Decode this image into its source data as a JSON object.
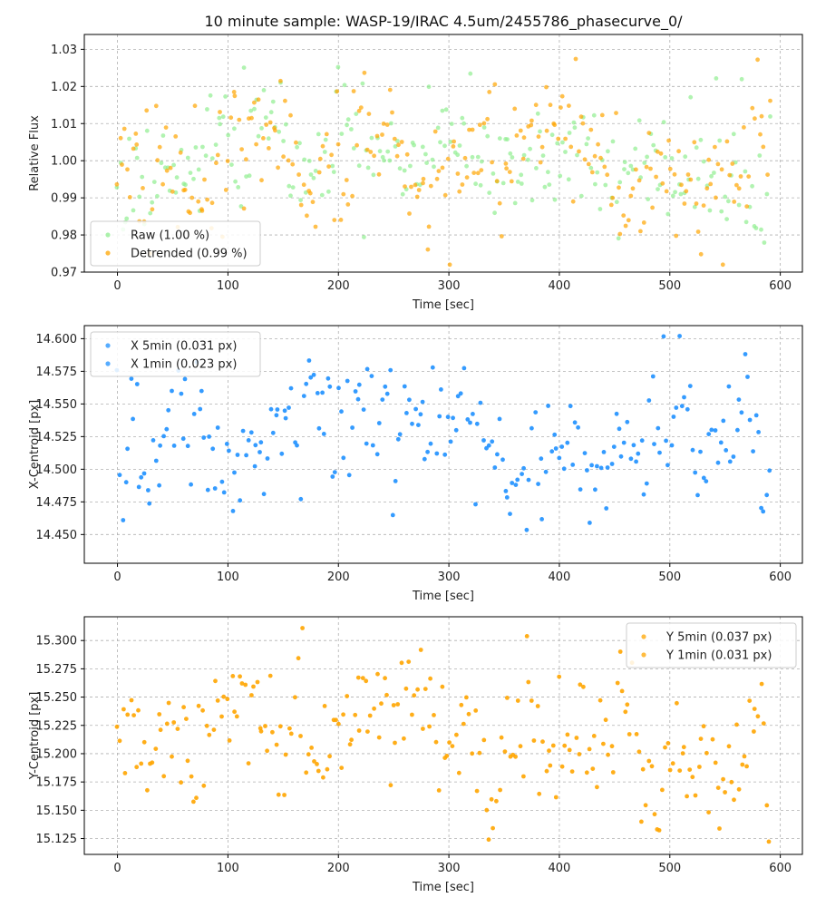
{
  "title": "10 minute sample: WASP-19/IRAC 4.5um/2455786_phasecurve_0/",
  "colors": {
    "raw": "#90EE90",
    "detrended": "#FFA500",
    "x": "#1E90FF",
    "y": "#FFA500"
  },
  "chart_data": [
    {
      "type": "scatter",
      "xlabel": "Time [sec]",
      "ylabel": "Relative Flux",
      "xlim": [
        -30,
        620
      ],
      "ylim": [
        0.97,
        1.034
      ],
      "xticks": [
        0,
        100,
        200,
        300,
        400,
        500,
        600
      ],
      "yticks": [
        0.97,
        0.98,
        0.99,
        1.0,
        1.01,
        1.02,
        1.03
      ],
      "ytick_labels": [
        "0.97",
        "0.98",
        "0.99",
        "1.00",
        "1.01",
        "1.02",
        "1.03"
      ],
      "grid": true,
      "legend_position": "bottom-left",
      "series": [
        {
          "name": "Raw (1.00 %)",
          "color": "#90EE90",
          "seed": 11,
          "mean": 1.0,
          "spread": 0.0105,
          "min": 0.974,
          "max": 1.027
        },
        {
          "name": "Detrended (0.99 %)",
          "color": "#FFA500",
          "seed": 23,
          "mean": 1.0,
          "spread": 0.0102,
          "min": 0.972,
          "max": 1.03
        }
      ],
      "x_range": [
        0,
        590
      ],
      "n_points": 260
    },
    {
      "type": "scatter",
      "xlabel": "Time [sec]",
      "ylabel": "X-Centroid [px]",
      "xlim": [
        -30,
        620
      ],
      "ylim": [
        14.428,
        14.61
      ],
      "xticks": [
        0,
        100,
        200,
        300,
        400,
        500,
        600
      ],
      "yticks": [
        14.45,
        14.475,
        14.5,
        14.525,
        14.55,
        14.575,
        14.6
      ],
      "ytick_labels": [
        "14.450",
        "14.475",
        "14.500",
        "14.525",
        "14.550",
        "14.575",
        "14.600"
      ],
      "grid": true,
      "legend_position": "top-left",
      "series": [
        {
          "name": "X 5min (0.031 px)",
          "color": "#1E90FF",
          "seed": 37,
          "mean": 14.515,
          "spread": 0.03,
          "min": 14.435,
          "max": 14.602
        },
        {
          "name": "X 1min (0.023 px)",
          "color": "#1E90FF",
          "seed": 41,
          "mean": 14.515,
          "spread": 0.0,
          "min": 14.435,
          "max": 14.602,
          "hidden": true
        }
      ],
      "x_range": [
        0,
        590
      ],
      "n_points": 240
    },
    {
      "type": "scatter",
      "xlabel": "Time [sec]",
      "ylabel": "Y-Centroid [px]",
      "xlim": [
        -30,
        620
      ],
      "ylim": [
        15.111,
        15.321
      ],
      "xticks": [
        0,
        100,
        200,
        300,
        400,
        500,
        600
      ],
      "yticks": [
        15.125,
        15.15,
        15.175,
        15.2,
        15.225,
        15.25,
        15.275,
        15.3
      ],
      "ytick_labels": [
        "15.125",
        "15.150",
        "15.175",
        "15.200",
        "15.225",
        "15.250",
        "15.275",
        "15.300"
      ],
      "grid": true,
      "legend_position": "top-right",
      "series": [
        {
          "name": "Y 5min (0.037 px)",
          "color": "#FFA500",
          "seed": 53,
          "mean": 15.21,
          "spread": 0.037,
          "min": 15.12,
          "max": 15.311
        },
        {
          "name": "Y 1min (0.031 px)",
          "color": "#FFA500",
          "seed": 59,
          "mean": 15.21,
          "spread": 0.0,
          "min": 15.12,
          "max": 15.311,
          "hidden": true
        }
      ],
      "x_range": [
        0,
        590
      ],
      "n_points": 240
    }
  ]
}
